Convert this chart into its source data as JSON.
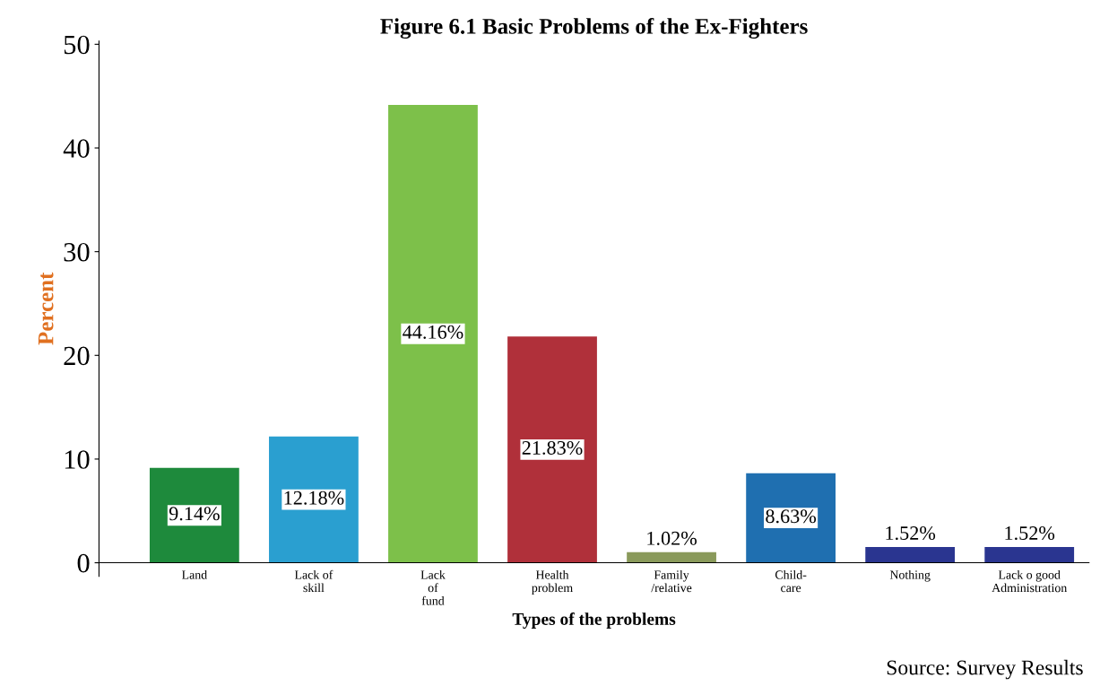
{
  "chart_data": {
    "type": "bar",
    "title": "Figure 6.1 Basic Problems of the Ex-Fighters",
    "xlabel": "Types of the problems",
    "ylabel": "Percent",
    "categories": [
      "Land",
      "Lack of\nskill",
      "Lack\nof\nfund",
      "Health\nproblem",
      "Family\n/relative",
      "Child-\ncare",
      "Nothing",
      "Lack o good\nAdministration"
    ],
    "values": [
      9.14,
      12.18,
      44.16,
      21.83,
      1.02,
      8.63,
      1.52,
      1.52
    ],
    "colors": [
      "#1e8a3c",
      "#2a9fd0",
      "#7dc04a",
      "#b0303a",
      "#8a9a5b",
      "#1f6fb0",
      "#2a3590",
      "#2a3590"
    ],
    "value_labels": [
      "9.14%",
      "12.18%",
      "44.16%",
      "21.83%",
      "1.02%",
      "8.63%",
      "1.52%",
      "1.52%"
    ],
    "ylim": [
      -1.3,
      50.3
    ],
    "yticks": [
      0,
      10,
      20,
      30,
      40,
      50
    ],
    "grid": false,
    "legend": false,
    "annotations": [
      "Source: Survey Results"
    ]
  }
}
